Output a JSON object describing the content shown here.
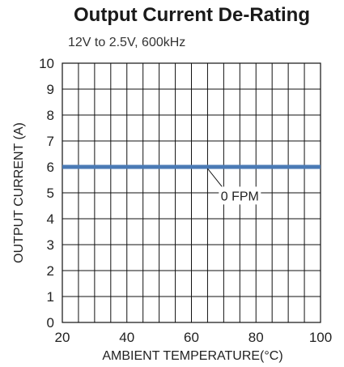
{
  "chart_data": {
    "type": "line",
    "title": "Output Current De-Rating",
    "subtitle": "12V to 2.5V, 600kHz",
    "xlabel": "AMBIENT TEMPERATURE(°C)",
    "ylabel": "OUTPUT CURRENT (A)",
    "xlim": [
      20,
      100
    ],
    "ylim": [
      0,
      10
    ],
    "x_ticks": [
      20,
      40,
      60,
      80,
      100
    ],
    "y_ticks": [
      0,
      1,
      2,
      3,
      4,
      5,
      6,
      7,
      8,
      9,
      10
    ],
    "x_minor_step": 5,
    "grid": true,
    "series": [
      {
        "name": "0 FPM",
        "color": "#4a7ab5",
        "x": [
          20,
          100
        ],
        "y": [
          6,
          6
        ]
      }
    ],
    "annotations": [
      {
        "text": "0 FPM",
        "series": 0,
        "point": [
          65,
          6
        ],
        "label_at": [
          75,
          4.8
        ]
      }
    ]
  }
}
